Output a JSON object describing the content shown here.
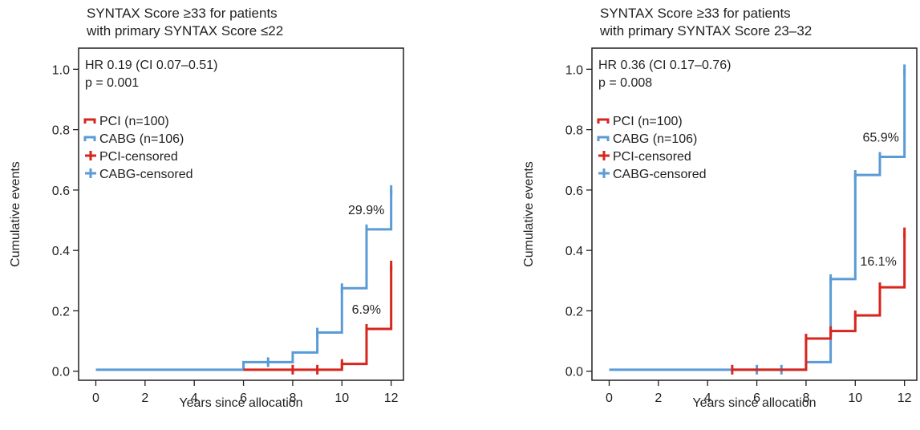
{
  "colors": {
    "pci": "#d7261e",
    "cabg": "#5b9bd5",
    "axis": "#231f20"
  },
  "chart_data": [
    {
      "type": "line",
      "step": true,
      "title_lines": [
        "SYNTAX Score ≥33 for patients",
        "with primary SYNTAX Score ≤22"
      ],
      "xlabel": "Years since allocation",
      "ylabel": "Cumulative events",
      "xlim": [
        -0.7,
        12.5
      ],
      "ylim": [
        -0.03,
        1.07
      ],
      "xticks": [
        0,
        2,
        4,
        6,
        8,
        10,
        12
      ],
      "yticks": [
        0.0,
        0.2,
        0.4,
        0.6,
        0.8,
        1.0
      ],
      "ytick_labels": [
        "0.0",
        "0.2",
        "0.4",
        "0.6",
        "0.8",
        "1.0"
      ],
      "stats": [
        "HR 0.19 (CI 0.07–0.51)",
        "p = 0.001"
      ],
      "legend": [
        "PCI (n=100)",
        "CABG (n=106)",
        "PCI-censored",
        "CABG-censored"
      ],
      "series": [
        {
          "key": "pci",
          "steps": [
            [
              6,
              0.005
            ],
            [
              10,
              0.024
            ],
            [
              11,
              0.14
            ],
            [
              12,
              0.35
            ]
          ],
          "censored": [
            [
              8,
              0.005
            ],
            [
              9,
              0.005
            ],
            [
              10,
              0.024
            ],
            [
              11,
              0.14
            ],
            [
              12,
              0.35
            ]
          ]
        },
        {
          "key": "cabg",
          "steps": [
            [
              0,
              0.005
            ],
            [
              6,
              0.03
            ],
            [
              8,
              0.062
            ],
            [
              9,
              0.128
            ],
            [
              10,
              0.275
            ],
            [
              11,
              0.47
            ],
            [
              12,
              0.6
            ]
          ],
          "censored": [
            [
              7,
              0.03
            ],
            [
              9,
              0.128
            ],
            [
              10,
              0.275
            ],
            [
              11,
              0.47
            ],
            [
              12,
              0.6
            ]
          ]
        }
      ],
      "annotations": [
        {
          "text": "29.9%",
          "series": "cabg",
          "x": 10.25,
          "y": 0.52
        },
        {
          "text": "6.9%",
          "series": "pci",
          "x": 10.4,
          "y": 0.19
        }
      ]
    },
    {
      "type": "line",
      "step": true,
      "title_lines": [
        "SYNTAX Score ≥33 for patients",
        "with primary SYNTAX Score 23–32"
      ],
      "xlabel": "Years since allocation",
      "ylabel": "Cumulative events",
      "xlim": [
        -0.7,
        12.5
      ],
      "ylim": [
        -0.03,
        1.07
      ],
      "xticks": [
        0,
        2,
        4,
        6,
        8,
        10,
        12
      ],
      "yticks": [
        0.0,
        0.2,
        0.4,
        0.6,
        0.8,
        1.0
      ],
      "ytick_labels": [
        "0.0",
        "0.2",
        "0.4",
        "0.6",
        "0.8",
        "1.0"
      ],
      "stats": [
        "HR 0.36 (CI 0.17–0.76)",
        "p = 0.008"
      ],
      "legend": [
        "PCI (n=100)",
        "CABG (n=106)",
        "PCI-censored",
        "CABG-censored"
      ],
      "series": [
        {
          "key": "pci",
          "steps": [
            [
              5,
              0.005
            ],
            [
              8,
              0.108
            ],
            [
              9,
              0.133
            ],
            [
              10,
              0.185
            ],
            [
              11,
              0.278
            ],
            [
              12,
              0.46
            ]
          ],
          "censored": [
            [
              5,
              0.005
            ],
            [
              8,
              0.108
            ],
            [
              9,
              0.133
            ],
            [
              10,
              0.185
            ],
            [
              11,
              0.278
            ],
            [
              12,
              0.46
            ]
          ]
        },
        {
          "key": "cabg",
          "steps": [
            [
              0,
              0.005
            ],
            [
              8,
              0.03
            ],
            [
              9,
              0.305
            ],
            [
              10,
              0.65
            ],
            [
              11,
              0.71
            ],
            [
              12,
              1.0
            ]
          ],
          "censored": [
            [
              6,
              0.005
            ],
            [
              7,
              0.005
            ],
            [
              9,
              0.305
            ],
            [
              10,
              0.65
            ],
            [
              11,
              0.71
            ],
            [
              12,
              1.0
            ]
          ]
        }
      ],
      "annotations": [
        {
          "text": "65.9%",
          "series": "cabg",
          "x": 10.3,
          "y": 0.76
        },
        {
          "text": "16.1%",
          "series": "pci",
          "x": 10.2,
          "y": 0.35
        }
      ]
    }
  ]
}
